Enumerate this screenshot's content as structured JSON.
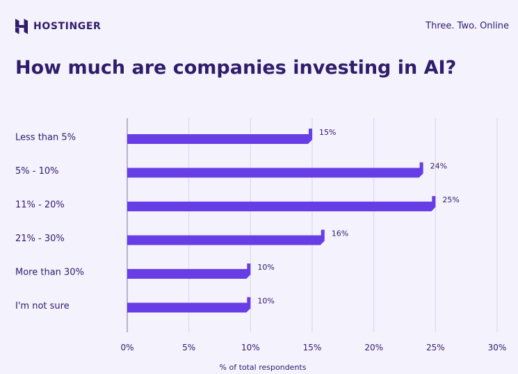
{
  "header": {
    "brand": "HOSTINGER",
    "tagline": "Three. Two. Online"
  },
  "colors": {
    "background": "#f3f2fd",
    "bar": "#673de6",
    "text": "#2f1c6a",
    "grid": "#d9d6ec"
  },
  "chart_data": {
    "type": "bar",
    "orientation": "horizontal",
    "title": "How much are companies investing in AI?",
    "xlabel": "% of total respondents",
    "ylabel": "",
    "categories": [
      "Less than 5%",
      "5% - 10%",
      "11% - 20%",
      "21% - 30%",
      "More than 30%",
      "I'm not sure"
    ],
    "values": [
      15,
      24,
      25,
      16,
      10,
      10
    ],
    "value_labels": [
      "15%",
      "24%",
      "25%",
      "16%",
      "10%",
      "10%"
    ],
    "xlim": [
      0,
      30
    ],
    "ticks": [
      0,
      5,
      10,
      15,
      20,
      25,
      30
    ],
    "tick_labels": [
      "0%",
      "5%",
      "10%",
      "15%",
      "20%",
      "25%",
      "30%"
    ],
    "grid": true,
    "legend": "none"
  }
}
